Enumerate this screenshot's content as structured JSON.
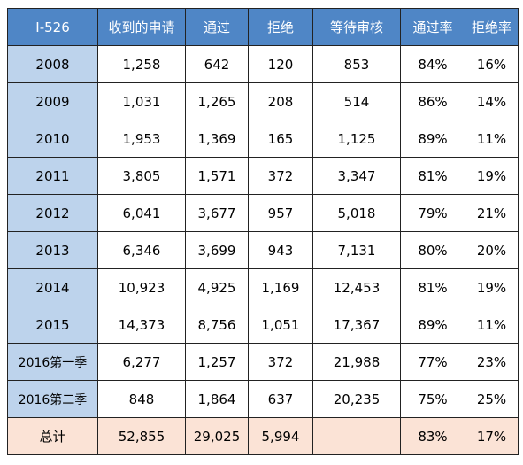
{
  "table": {
    "headers": [
      "I-526",
      "收到的申请",
      "通过",
      "拒绝",
      "等待审核",
      "通过率",
      "拒绝率"
    ],
    "rows": [
      [
        "2008",
        "1,258",
        "642",
        "120",
        "853",
        "84%",
        "16%"
      ],
      [
        "2009",
        "1,031",
        "1,265",
        "208",
        "514",
        "86%",
        "14%"
      ],
      [
        "2010",
        "1,953",
        "1,369",
        "165",
        "1,125",
        "89%",
        "11%"
      ],
      [
        "2011",
        "3,805",
        "1,571",
        "372",
        "3,347",
        "81%",
        "19%"
      ],
      [
        "2012",
        "6,041",
        "3,677",
        "957",
        "5,018",
        "79%",
        "21%"
      ],
      [
        "2013",
        "6,346",
        "3,699",
        "943",
        "7,131",
        "80%",
        "20%"
      ],
      [
        "2014",
        "10,923",
        "4,925",
        "1,169",
        "12,453",
        "81%",
        "19%"
      ],
      [
        "2015",
        "14,373",
        "8,756",
        "1,051",
        "17,367",
        "89%",
        "11%"
      ],
      [
        "2016第一季",
        "6,277",
        "1,257",
        "372",
        "21,988",
        "77%",
        "23%"
      ],
      [
        "2016第二季",
        "848",
        "1,864",
        "637",
        "20,235",
        "75%",
        "25%"
      ]
    ],
    "total": [
      "总计",
      "52,855",
      "29,025",
      "5,994",
      "",
      "83%",
      "17%"
    ]
  },
  "colors": {
    "header_bg": "#4f86c6",
    "year_col_bg": "#bdd3ec",
    "total_row_bg": "#fbe3d6",
    "border": "#222222"
  }
}
